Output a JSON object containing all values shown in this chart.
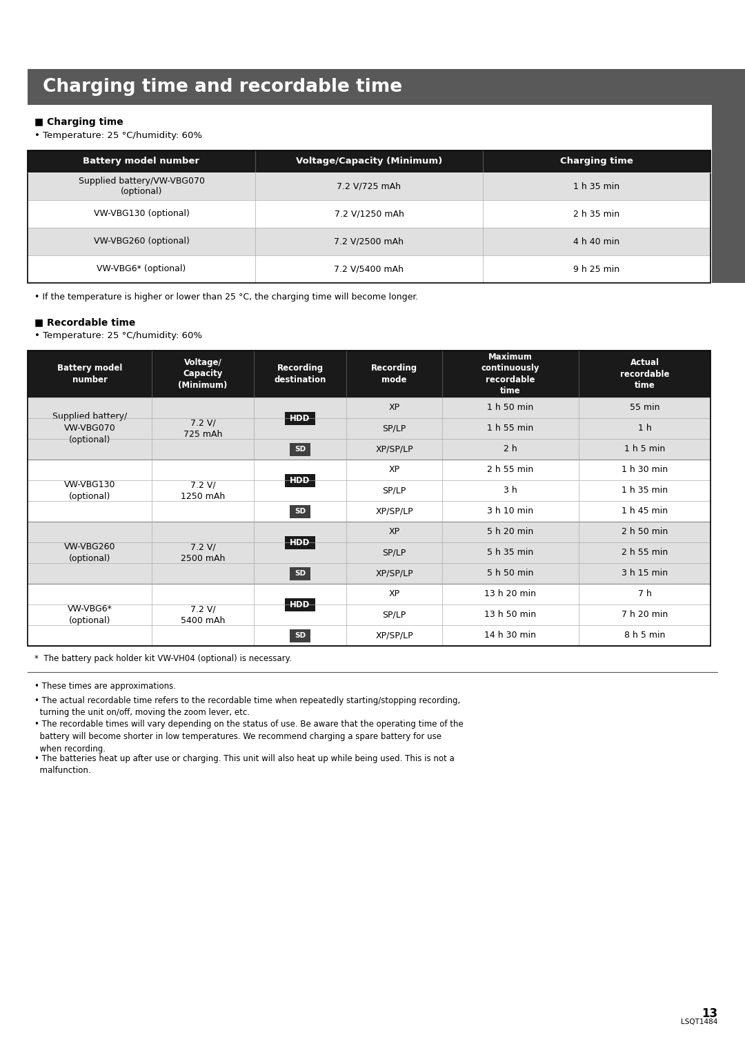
{
  "title": "Charging time and recordable time",
  "title_bg": "#595959",
  "title_color": "#ffffff",
  "section1_header": "■ Charging time",
  "section1_bullet": "• Temperature: 25 °C/humidity: 60%",
  "charging_table_headers": [
    "Battery model number",
    "Voltage/Capacity (Minimum)",
    "Charging time"
  ],
  "charging_table_data": [
    [
      "Supplied battery/VW-VBG070\n(optional)",
      "7.2 V/725 mAh",
      "1 h 35 min"
    ],
    [
      "VW-VBG130 (optional)",
      "7.2 V/1250 mAh",
      "2 h 35 min"
    ],
    [
      "VW-VBG260 (optional)",
      "7.2 V/2500 mAh",
      "4 h 40 min"
    ],
    [
      "VW-VBG6* (optional)",
      "7.2 V/5400 mAh",
      "9 h 25 min"
    ]
  ],
  "charging_note": "• If the temperature is higher or lower than 25 °C, the charging time will become longer.",
  "section2_header": "■ Recordable time",
  "section2_bullet": "• Temperature: 25 °C/humidity: 60%",
  "recordable_table_headers": [
    "Battery model\nnumber",
    "Voltage/\nCapacity\n(Minimum)",
    "Recording\ndestination",
    "Recording\nmode",
    "Maximum\ncontinuously\nrecordable\ntime",
    "Actual\nrecordable\ntime"
  ],
  "footnote_star": "*  The battery pack holder kit VW-VH04 (optional) is necessary.",
  "footnotes": [
    "• These times are approximations.",
    "• The actual recordable time refers to the recordable time when repeatedly starting/stopping recording,\n  turning the unit on/off, moving the zoom lever, etc.",
    "• The recordable times will vary depending on the status of use. Be aware that the operating time of the\n  battery will become shorter in low temperatures. We recommend charging a spare battery for use\n  when recording.",
    "• The batteries heat up after use or charging. This unit will also heat up while being used. This is not a\n  malfunction."
  ],
  "page_number": "13",
  "page_code": "LSQT1484",
  "table_header_bg": "#1a1a1a",
  "table_header_color": "#ffffff",
  "table_row_odd_bg": "#ffffff",
  "table_row_even_bg": "#e0e0e0",
  "table_border_color": "#000000",
  "hdd_bg": "#1a1a1a",
  "hdd_color": "#ffffff",
  "sd_bg": "#404040",
  "sd_color": "#ffffff",
  "right_sidebar_color": "#595959",
  "page_bg": "#ffffff"
}
